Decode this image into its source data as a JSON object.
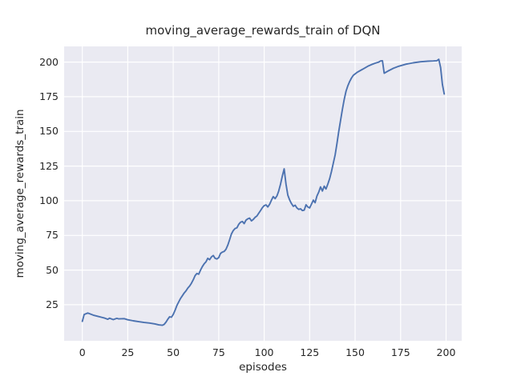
{
  "chart_data": {
    "type": "line",
    "title": "moving_average_rewards_train of DQN",
    "xlabel": "episodes",
    "ylabel": "moving_average_rewards_train",
    "xlim": [
      -10,
      208.6
    ],
    "ylim": [
      -1,
      211.3
    ],
    "xticks": [
      0,
      25,
      50,
      75,
      100,
      125,
      150,
      175,
      200
    ],
    "yticks": [
      25,
      50,
      75,
      100,
      125,
      150,
      175,
      200
    ],
    "grid": true,
    "legend": false,
    "colors": {
      "line": "#4c72b0",
      "axes_bg": "#eaeaf2",
      "grid": "#ffffff",
      "figure_bg": "#ffffff",
      "text": "#262626"
    },
    "series": [
      {
        "name": "moving_average_rewards_train",
        "x": [
          0,
          1,
          3,
          6,
          9,
          12,
          14,
          15,
          17,
          19,
          20,
          23,
          25,
          28,
          31,
          34,
          37,
          40,
          42,
          44,
          45,
          46,
          47,
          48,
          49,
          50,
          51,
          52,
          53,
          54,
          55,
          56,
          57,
          58,
          59,
          60,
          61,
          62,
          63,
          64,
          65,
          66,
          67,
          68,
          69,
          70,
          71,
          72,
          73,
          74,
          75,
          76,
          77,
          78,
          79,
          80,
          81,
          82,
          83,
          84,
          85,
          86,
          87,
          88,
          89,
          90,
          91,
          92,
          93,
          94,
          95,
          96,
          97,
          98,
          99,
          100,
          101,
          102,
          103,
          104,
          105,
          106,
          107,
          108,
          109,
          110,
          111,
          112,
          113,
          114,
          115,
          116,
          117,
          118,
          119,
          120,
          121,
          122,
          123,
          124,
          125,
          126,
          127,
          128,
          129,
          130,
          131,
          132,
          133,
          134,
          135,
          136,
          137,
          138,
          139,
          140,
          141,
          142,
          143,
          144,
          145,
          146,
          147,
          148,
          149,
          151,
          153,
          155,
          157,
          159,
          161,
          163,
          164,
          165,
          166,
          168,
          171,
          174,
          178,
          182,
          186,
          190,
          193,
          195,
          196,
          197,
          198,
          199
        ],
        "y": [
          13,
          18,
          19,
          17.5,
          16.5,
          15.5,
          14.5,
          15.3,
          14.3,
          15.2,
          14.8,
          15,
          14.2,
          13.4,
          12.8,
          12.2,
          11.8,
          11.2,
          10.5,
          10.2,
          10.8,
          12.5,
          14.5,
          16.3,
          16,
          18,
          21,
          24.5,
          27,
          29.5,
          31.5,
          33.5,
          35,
          37,
          38.5,
          40.5,
          43,
          46,
          47.5,
          47,
          50,
          52.5,
          54.5,
          56,
          58.5,
          57.5,
          59.5,
          60.5,
          58.5,
          58,
          59,
          62,
          63,
          63.5,
          65,
          68,
          72,
          76,
          78.5,
          80,
          80.5,
          83,
          84.5,
          85,
          83.5,
          86,
          87,
          87.5,
          85.5,
          86.5,
          88,
          89,
          91,
          93,
          95,
          96.5,
          97,
          95.5,
          97.5,
          100.5,
          103,
          101.5,
          103.5,
          107,
          112,
          118,
          123,
          112,
          104,
          100.5,
          98,
          96,
          96.8,
          94.8,
          93.8,
          94.2,
          92.9,
          93.2,
          97.1,
          95.5,
          94.8,
          97.6,
          100.5,
          98.6,
          103.4,
          106.3,
          110,
          107,
          110.5,
          108.5,
          112,
          116,
          121,
          127,
          133,
          141,
          150,
          158,
          166,
          173,
          179,
          183,
          186,
          188.5,
          190.5,
          192.5,
          194,
          195.5,
          197,
          198.2,
          199.2,
          200,
          200.8,
          201,
          192,
          193.5,
          195.5,
          197,
          198.5,
          199.5,
          200.2,
          200.6,
          200.8,
          201,
          202,
          196,
          184,
          177
        ]
      }
    ]
  }
}
